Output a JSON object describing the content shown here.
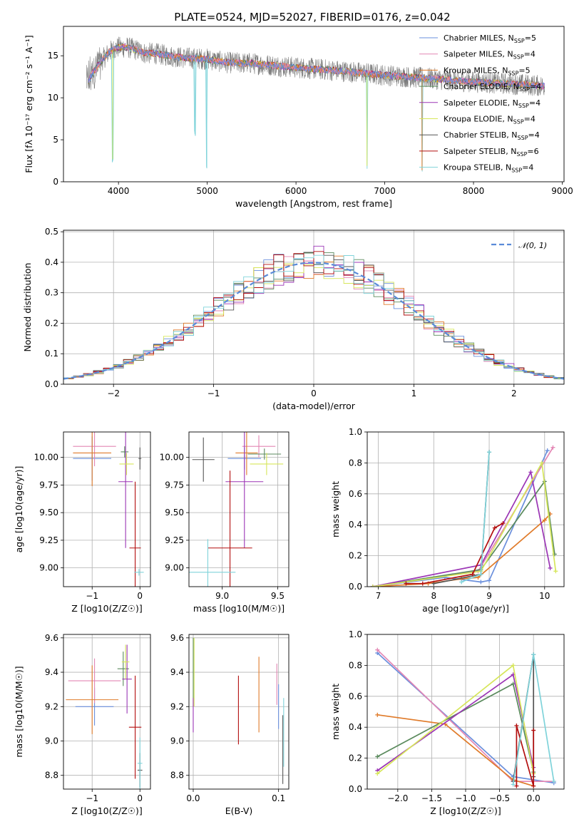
{
  "figure": {
    "title": "PLATE=0524, MJD=52027, FIBERID=0176, z=0.042"
  },
  "colors": {
    "Chabrier MILES": "#6a8fdc",
    "Salpeter MILES": "#e386b4",
    "Kroupa MILES": "#e07b2a",
    "Chabrier ELODIE": "#5a8a5c",
    "Salpeter ELODIE": "#9b35b5",
    "Kroupa ELODIE": "#d6e65a",
    "Chabrier STELIB": "#555555",
    "Salpeter STELIB": "#b30f0f",
    "Kroupa STELIB": "#7fd3da",
    "gauss": "#5a8ad8",
    "grid": "#b0b0b0"
  },
  "legend_spectrum": [
    {
      "name": "Chabrier MILES",
      "label": "Chabrier MILES, N",
      "sub": "SSP",
      "suffix": "=5"
    },
    {
      "name": "Salpeter MILES",
      "label": "Salpeter MILES, N",
      "sub": "SSP",
      "suffix": "=4"
    },
    {
      "name": "Kroupa MILES",
      "label": "Kroupa MILES, N",
      "sub": "SSP",
      "suffix": "=5"
    },
    {
      "name": "Chabrier ELODIE",
      "label": "Chabrier ELODIE, N",
      "sub": "SSP",
      "suffix": "=4"
    },
    {
      "name": "Salpeter ELODIE",
      "label": "Salpeter ELODIE, N",
      "sub": "SSP",
      "suffix": "=4"
    },
    {
      "name": "Kroupa ELODIE",
      "label": "Kroupa ELODIE, N",
      "sub": "SSP",
      "suffix": "=4"
    },
    {
      "name": "Chabrier STELIB",
      "label": "Chabrier STELIB, N",
      "sub": "SSP",
      "suffix": "=4"
    },
    {
      "name": "Salpeter STELIB",
      "label": "Salpeter STELIB, N",
      "sub": "SSP",
      "suffix": "=6"
    },
    {
      "name": "Kroupa STELIB",
      "label": "Kroupa STELIB, N",
      "sub": "SSP",
      "suffix": "=4"
    }
  ],
  "chart_data": [
    {
      "id": "spectrum",
      "type": "line",
      "xlabel": "wavelength [Angstrom, rest frame]",
      "ylabel": "Flux [fλ 10⁻¹⁷ erg cm⁻² s⁻¹ A⁻¹]",
      "xlim": [
        3380,
        9020
      ],
      "ylim": [
        0,
        18.5
      ],
      "xticks": [
        4000,
        5000,
        6000,
        7000,
        8000,
        9000
      ],
      "yticks": [
        0,
        5,
        10,
        15
      ],
      "grid": false,
      "legend_position": "upper right",
      "continuum": {
        "x": [
          3640,
          3700,
          3800,
          3900,
          4000,
          4100,
          4200,
          4300,
          4400,
          4500,
          4700,
          5000,
          5200,
          5500,
          6000,
          6500,
          7000,
          7500,
          8000,
          8500,
          8800
        ],
        "y": [
          11.5,
          12.8,
          14.3,
          15.5,
          16.0,
          16.0,
          15.7,
          15.3,
          15.3,
          15.1,
          14.8,
          14.6,
          14.2,
          14.1,
          13.6,
          13.2,
          12.7,
          12.3,
          11.9,
          11.6,
          11.4
        ]
      },
      "absorption_features": [
        {
          "x": 3934,
          "depth": 13
        },
        {
          "x": 4861,
          "depth": 9
        },
        {
          "x": 4995,
          "depth": 13
        },
        {
          "x": 6800,
          "depth": 11
        },
        {
          "x": 7420,
          "depth": 11
        }
      ],
      "series": [
        {
          "name": "Chabrier MILES"
        },
        {
          "name": "Salpeter MILES"
        },
        {
          "name": "Kroupa MILES"
        },
        {
          "name": "Chabrier ELODIE"
        },
        {
          "name": "Salpeter ELODIE"
        },
        {
          "name": "Kroupa ELODIE"
        },
        {
          "name": "Chabrier STELIB"
        },
        {
          "name": "Salpeter STELIB"
        },
        {
          "name": "Kroupa STELIB"
        }
      ]
    },
    {
      "id": "residuals",
      "type": "bar",
      "xlabel": "(data-model)/error",
      "ylabel": "Normed distribution",
      "xlim": [
        -2.5,
        2.5
      ],
      "ylim": [
        0,
        0.505
      ],
      "xticks": [
        -2,
        -1,
        0,
        1,
        2
      ],
      "yticks": [
        0.0,
        0.1,
        0.2,
        0.3,
        0.4,
        0.5
      ],
      "grid": true,
      "bin_width": 0.1,
      "legend": [
        {
          "name": "gauss",
          "label": "𝒩(0, 1)"
        }
      ],
      "legend_position": "upper right",
      "histogram_series": [
        "Chabrier MILES",
        "Salpeter MILES",
        "Kroupa MILES",
        "Chabrier ELODIE",
        "Salpeter ELODIE",
        "Kroupa ELODIE",
        "Chabrier STELIB",
        "Salpeter STELIB",
        "Kroupa STELIB"
      ],
      "gauss_curve": {
        "mean": 0,
        "sigma": 1
      }
    },
    {
      "id": "age_vs_Z",
      "type": "scatter",
      "xlabel": "Z [log10(Z/Z☉)]",
      "ylabel": "age [log10(age/yr)]",
      "xlim": [
        -1.6,
        0.22
      ],
      "ylim": [
        8.83,
        10.23
      ],
      "xticks": [
        -1,
        0
      ],
      "yticks": [
        9.0,
        9.25,
        9.5,
        9.75,
        10.0
      ],
      "grid": true,
      "errorbars": [
        {
          "series": "Chabrier MILES",
          "x": -1.0,
          "xerr": 0.4,
          "y": 9.99,
          "yerr": 0.2
        },
        {
          "series": "Salpeter MILES",
          "x": -0.95,
          "xerr": 0.45,
          "y": 10.1,
          "yerr": 0.18
        },
        {
          "series": "Kroupa MILES",
          "x": -1.0,
          "xerr": 0.4,
          "y": 10.04,
          "yerr": 0.3
        },
        {
          "series": "Chabrier ELODIE",
          "x": -0.32,
          "xerr": 0.08,
          "y": 10.05,
          "yerr": 0.05
        },
        {
          "series": "Salpeter ELODIE",
          "x": -0.3,
          "xerr": 0.15,
          "y": 9.78,
          "yerr": 0.6
        },
        {
          "series": "Kroupa ELODIE",
          "x": -0.28,
          "xerr": 0.15,
          "y": 9.94,
          "yerr": 0.1
        },
        {
          "series": "Chabrier STELIB",
          "x": 0.0,
          "xerr": 0.03,
          "y": 9.99,
          "yerr": 0.1
        },
        {
          "series": "Salpeter STELIB",
          "x": -0.1,
          "xerr": 0.12,
          "y": 9.18,
          "yerr": 0.6
        },
        {
          "series": "Kroupa STELIB",
          "x": -0.02,
          "xerr": 0.1,
          "y": 8.96,
          "yerr": 0.03
        }
      ]
    },
    {
      "id": "age_vs_mass",
      "type": "scatter",
      "xlabel": "mass [log10(M/M☉)]",
      "ylabel": "",
      "xlim": [
        8.7,
        9.6
      ],
      "ylim": [
        8.83,
        10.23
      ],
      "xticks": [
        9.0,
        9.5
      ],
      "yticks": [
        9.0,
        9.25,
        9.5,
        9.75,
        10.0
      ],
      "grid": true,
      "errorbars": [
        {
          "series": "Chabrier MILES",
          "x": 9.2,
          "xerr": 0.15,
          "y": 9.99,
          "yerr": 0.1
        },
        {
          "series": "Salpeter MILES",
          "x": 9.33,
          "xerr": 0.15,
          "y": 10.1,
          "yerr": 0.1
        },
        {
          "series": "Kroupa MILES",
          "x": 9.22,
          "xerr": 0.1,
          "y": 10.04,
          "yerr": 0.2
        },
        {
          "series": "Chabrier ELODIE",
          "x": 9.38,
          "xerr": 0.15,
          "y": 10.03,
          "yerr": 0.05
        },
        {
          "series": "Salpeter ELODIE",
          "x": 9.2,
          "xerr": 0.17,
          "y": 9.78,
          "yerr": 0.6
        },
        {
          "series": "Kroupa ELODIE",
          "x": 9.4,
          "xerr": 0.15,
          "y": 9.94,
          "yerr": 0.1
        },
        {
          "series": "Chabrier STELIB",
          "x": 8.83,
          "xerr": 0.1,
          "y": 9.98,
          "yerr": 0.2
        },
        {
          "series": "Salpeter STELIB",
          "x": 9.07,
          "xerr": 0.2,
          "y": 9.18,
          "yerr": 0.7
        },
        {
          "series": "Kroupa STELIB",
          "x": 8.87,
          "xerr": 0.25,
          "y": 8.96,
          "yerr": 0.3
        }
      ]
    },
    {
      "id": "weight_vs_age",
      "type": "line",
      "xlabel": "age [log10(age/yr)]",
      "ylabel": "mass weight",
      "xlim": [
        6.8,
        10.35
      ],
      "ylim": [
        0,
        1.0
      ],
      "xticks": [
        7,
        8,
        9,
        10
      ],
      "yticks": [
        0.0,
        0.2,
        0.4,
        0.6,
        0.8,
        1.0
      ],
      "grid": true,
      "series": [
        {
          "name": "Chabrier MILES",
          "x": [
            6.9,
            8.2,
            8.85,
            9.0,
            10.05
          ],
          "y": [
            0.0,
            0.06,
            0.03,
            0.04,
            0.88
          ]
        },
        {
          "name": "Salpeter MILES",
          "x": [
            6.9,
            8.8,
            10.15
          ],
          "y": [
            0.0,
            0.1,
            0.9
          ]
        },
        {
          "name": "Kroupa MILES",
          "x": [
            6.9,
            7.9,
            8.5,
            8.8,
            10.0,
            10.1
          ],
          "y": [
            0.0,
            0.02,
            0.05,
            0.06,
            0.43,
            0.47
          ]
        },
        {
          "name": "Chabrier ELODIE",
          "x": [
            6.9,
            8.85,
            10.0,
            10.18
          ],
          "y": [
            0.0,
            0.11,
            0.68,
            0.21
          ]
        },
        {
          "name": "Salpeter ELODIE",
          "x": [
            6.9,
            8.85,
            9.75,
            10.1
          ],
          "y": [
            0.0,
            0.14,
            0.74,
            0.12
          ]
        },
        {
          "name": "Kroupa ELODIE",
          "x": [
            6.9,
            8.85,
            9.95,
            10.2
          ],
          "y": [
            0.0,
            0.1,
            0.8,
            0.1
          ]
        },
        {
          "name": "Chabrier STELIB",
          "x": [
            8.0,
            8.85,
            9.0
          ],
          "y": [
            0.02,
            0.08,
            0.87
          ]
        },
        {
          "name": "Salpeter STELIB",
          "x": [
            7.5,
            7.8,
            8.7,
            9.1,
            9.25
          ],
          "y": [
            0.02,
            0.02,
            0.08,
            0.38,
            0.41
          ]
        },
        {
          "name": "Kroupa STELIB",
          "x": [
            8.5,
            8.85,
            9.0
          ],
          "y": [
            0.03,
            0.08,
            0.87
          ]
        }
      ]
    },
    {
      "id": "mass_vs_Z",
      "type": "scatter",
      "xlabel": "Z [log10(Z/Z☉)]",
      "ylabel": "mass [log10(M/M☉)]",
      "xlim": [
        -1.6,
        0.22
      ],
      "ylim": [
        8.72,
        9.62
      ],
      "xticks": [
        -1,
        0
      ],
      "yticks": [
        8.8,
        9.0,
        9.2,
        9.4,
        9.6
      ],
      "grid": true,
      "errorbars": [
        {
          "series": "Chabrier MILES",
          "x": -0.95,
          "xerr": 0.4,
          "y": 9.2,
          "yerr": 0.11
        },
        {
          "series": "Salpeter MILES",
          "x": -0.95,
          "xerr": 0.55,
          "y": 9.35,
          "yerr": 0.13
        },
        {
          "series": "Kroupa MILES",
          "x": -1.0,
          "xerr": 0.55,
          "y": 9.24,
          "yerr": 0.2
        },
        {
          "series": "Chabrier ELODIE",
          "x": -0.35,
          "xerr": 0.12,
          "y": 9.42,
          "yerr": 0.1
        },
        {
          "series": "Salpeter ELODIE",
          "x": -0.27,
          "xerr": 0.1,
          "y": 9.36,
          "yerr": 0.2
        },
        {
          "series": "Kroupa ELODIE",
          "x": -0.3,
          "xerr": 0.08,
          "y": 9.46,
          "yerr": 0.1
        },
        {
          "series": "Chabrier STELIB",
          "x": 0.0,
          "xerr": 0.05,
          "y": 8.83,
          "yerr": 0.1
        },
        {
          "series": "Salpeter STELIB",
          "x": -0.1,
          "xerr": 0.13,
          "y": 9.08,
          "yerr": 0.3
        },
        {
          "series": "Kroupa STELIB",
          "x": 0.0,
          "xerr": 0.05,
          "y": 8.87,
          "yerr": 0.15
        }
      ]
    },
    {
      "id": "mass_vs_ebv",
      "type": "scatter",
      "xlabel": "E(B-V)",
      "ylabel": "",
      "xlim": [
        -0.005,
        0.112
      ],
      "ylim": [
        8.72,
        9.62
      ],
      "xticks": [
        0.0,
        0.1
      ],
      "yticks": [
        8.8,
        9.0,
        9.2,
        9.4,
        9.6
      ],
      "grid": true,
      "errorbars": [
        {
          "series": "Chabrier MILES",
          "x": 0.1,
          "xerr": 0,
          "y": 9.2,
          "yerr": 0.13
        },
        {
          "series": "Salpeter MILES",
          "x": 0.098,
          "xerr": 0,
          "y": 9.33,
          "yerr": 0.12
        },
        {
          "series": "Kroupa MILES",
          "x": 0.077,
          "xerr": 0,
          "y": 9.27,
          "yerr": 0.22
        },
        {
          "series": "Chabrier ELODIE",
          "x": 0.0,
          "xerr": 0,
          "y": 9.4,
          "yerr": 0.2
        },
        {
          "series": "Salpeter ELODIE",
          "x": 0.0,
          "xerr": 0,
          "y": 9.15,
          "yerr": 0.1
        },
        {
          "series": "Kroupa ELODIE",
          "x": 0.001,
          "xerr": 0,
          "y": 9.4,
          "yerr": 0.2
        },
        {
          "series": "Chabrier STELIB",
          "x": 0.105,
          "xerr": 0,
          "y": 8.95,
          "yerr": 0.2
        },
        {
          "series": "Salpeter STELIB",
          "x": 0.053,
          "xerr": 0,
          "y": 9.18,
          "yerr": 0.2
        },
        {
          "series": "Kroupa STELIB",
          "x": 0.106,
          "xerr": 0,
          "y": 9.05,
          "yerr": 0.2
        }
      ]
    },
    {
      "id": "weight_vs_Z",
      "type": "line",
      "xlabel": "Z [log10(Z/Z☉)]",
      "ylabel": "mass weight",
      "xlim": [
        -2.45,
        0.45
      ],
      "ylim": [
        0,
        1.0
      ],
      "xticks": [
        -2.0,
        -1.5,
        -1.0,
        -0.5,
        0.0
      ],
      "yticks": [
        0.0,
        0.2,
        0.4,
        0.6,
        0.8,
        1.0
      ],
      "grid": true,
      "series": [
        {
          "name": "Chabrier MILES",
          "x": [
            -2.3,
            -0.3,
            0.3
          ],
          "y": [
            0.88,
            0.08,
            0.04
          ]
        },
        {
          "name": "Salpeter MILES",
          "x": [
            -2.3,
            -0.3,
            0.3
          ],
          "y": [
            0.9,
            0.05,
            0.05
          ]
        },
        {
          "name": "Kroupa MILES",
          "x": [
            -2.3,
            -1.3,
            -0.3,
            0.0
          ],
          "y": [
            0.48,
            0.42,
            0.06,
            0.02
          ]
        },
        {
          "name": "Chabrier ELODIE",
          "x": [
            -2.3,
            -0.3,
            0.0
          ],
          "y": [
            0.21,
            0.68,
            0.11
          ]
        },
        {
          "name": "Salpeter ELODIE",
          "x": [
            -2.3,
            -0.3,
            0.0
          ],
          "y": [
            0.12,
            0.74,
            0.14
          ]
        },
        {
          "name": "Kroupa ELODIE",
          "x": [
            -2.3,
            -0.3,
            0.0
          ],
          "y": [
            0.1,
            0.8,
            0.1
          ]
        },
        {
          "name": "Chabrier STELIB",
          "x": [
            -0.3,
            0.0,
            0.0
          ],
          "y": [
            0.05,
            0.87,
            0.08
          ]
        },
        {
          "name": "Salpeter STELIB",
          "x": [
            -0.25,
            -0.25,
            0.0,
            0.0
          ],
          "y": [
            0.02,
            0.41,
            0.02,
            0.38
          ]
        },
        {
          "name": "Kroupa STELIB",
          "x": [
            -0.3,
            0.0,
            0.3
          ],
          "y": [
            0.03,
            0.87,
            0.05
          ]
        }
      ]
    }
  ]
}
